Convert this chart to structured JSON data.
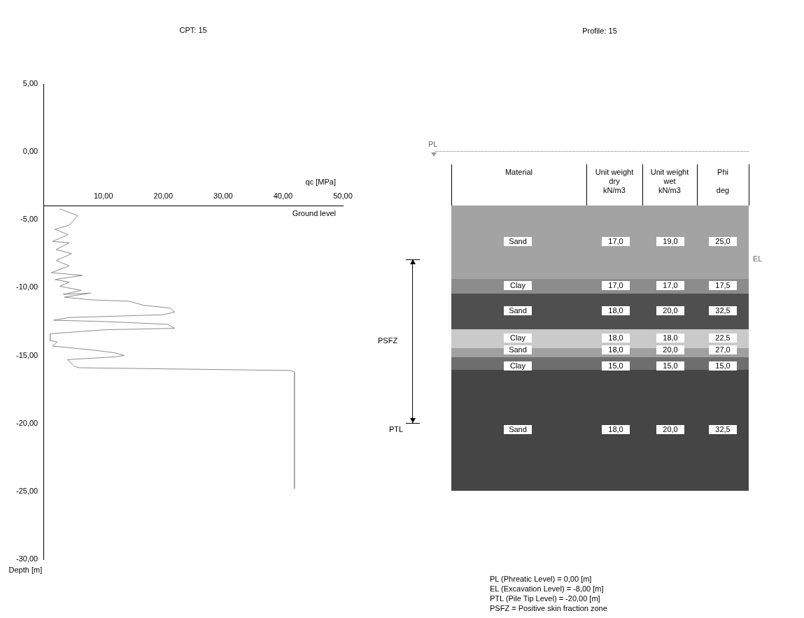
{
  "chart_data": [
    {
      "type": "line",
      "title": "CPT: 15",
      "xlabel": "qc [MPa]",
      "ylabel": "Depth [m]",
      "annotations": [
        "Ground level"
      ],
      "xlim": [
        0,
        50
      ],
      "xticks": [
        {
          "value": 10,
          "label": "10,00"
        },
        {
          "value": 20,
          "label": "20,00"
        },
        {
          "value": 30,
          "label": "30,00"
        },
        {
          "value": 40,
          "label": "40,00"
        },
        {
          "value": 50,
          "label": "50,00"
        }
      ],
      "ylim": [
        -30,
        5
      ],
      "yticks": [
        {
          "value": 5,
          "label": "5,00"
        },
        {
          "value": 0,
          "label": "0,00"
        },
        {
          "value": -5,
          "label": "-5,00"
        },
        {
          "value": -10,
          "label": "-10,00"
        },
        {
          "value": -15,
          "label": "-15,00"
        },
        {
          "value": -20,
          "label": "-20,00"
        },
        {
          "value": -25,
          "label": "-25,00"
        },
        {
          "value": -30,
          "label": "-30,00"
        }
      ],
      "grid": false,
      "legend": false,
      "marker": "none",
      "series": [
        {
          "color": "#8c8c8c",
          "x": [
            2.7,
            5.7,
            4.3,
            1.9,
            4.1,
            1.5,
            4.3,
            2.1,
            4.7,
            2.1,
            4.3,
            1.3,
            6.5,
            1.9,
            4.3,
            2.7,
            6.3,
            3.3,
            7.9,
            3.5,
            7.9,
            14.3,
            16.7,
            21.1,
            21.9,
            19.9,
            4.3,
            1.7,
            10.3,
            20.7,
            21.9,
            10.3,
            1.1,
            1.1,
            2.3,
            1.5,
            8.3,
            11.9,
            13.5,
            11.9,
            4.0,
            5.2,
            6.0,
            41.3,
            41.9,
            41.9
          ],
          "values": [
            -4.2,
            -4.7,
            -5.4,
            -5.7,
            -6.1,
            -6.6,
            -6.7,
            -7.2,
            -7.5,
            -8.0,
            -8.4,
            -8.9,
            -9.1,
            -9.4,
            -9.6,
            -9.9,
            -10.2,
            -10.5,
            -10.4,
            -10.7,
            -10.9,
            -11.0,
            -11.3,
            -11.5,
            -11.8,
            -12.0,
            -12.2,
            -12.4,
            -12.5,
            -12.7,
            -13.0,
            -13.1,
            -13.4,
            -13.9,
            -14.0,
            -14.3,
            -14.6,
            -14.8,
            -15.0,
            -15.1,
            -15.3,
            -15.8,
            -15.9,
            -16.1,
            -16.2,
            -24.8
          ]
        }
      ]
    },
    {
      "type": "other",
      "title": "Profile: 15",
      "annotations": [
        "Material",
        "Unit weight\ndry\nkN/m3",
        "Unit weight\nwet\nkN/m3",
        "Phi\n\ndeg",
        "Sand",
        "17,0",
        "19,0",
        "25,0",
        "Clay",
        "17,0",
        "17,0",
        "17,5",
        "Sand",
        "18,0",
        "20,0",
        "32,5",
        "Clay",
        "18,0",
        "18,0",
        "22,5",
        "Sand",
        "18,0",
        "20,0",
        "27,0",
        "Clay",
        "15,0",
        "15,0",
        "15,0",
        "Sand",
        "18,0",
        "20,0",
        "32,5",
        "PL",
        "EL",
        "PSFZ",
        "PTL",
        "PL (Phreatic Level) = 0,00 [m]",
        "EL (Excavation Level) = -8,00 [m]",
        "PTL (Pile Tip Level) = -20,00 [m]",
        "PSFZ = Positive skin fraction zone"
      ]
    }
  ]
}
